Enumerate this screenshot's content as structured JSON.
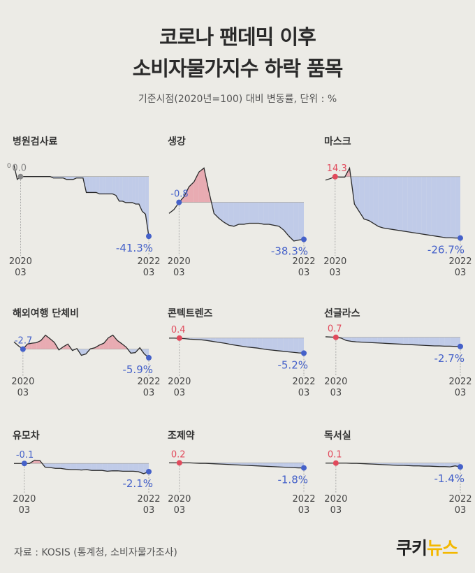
{
  "title_line1": "코로나 팬데믹 이후",
  "title_line2": "소비자물가지수 하락 품목",
  "subtitle": "기준시점(2020년=100) 대비 변동률, 단위 : %",
  "source": "자료 : KOSIS (통계청, 소비자물가조사)",
  "logo": {
    "part1": "쿠키",
    "part2": "뉴스"
  },
  "colors": {
    "pos": "#e8a0a8",
    "neg": "#b8c6e8",
    "pos_dot": "#e14a5c",
    "neg_dot": "#4561c9",
    "line": "#2a2a2a"
  },
  "chart_data": [
    {
      "type": "area",
      "title": "병원검사료",
      "start_label": "2020\n03",
      "end_label": "2022\n03",
      "start_value": 0.0,
      "end_value": -41.3,
      "start_text": "0.0",
      "end_text": "-41.3%",
      "ylim": [
        -48,
        10
      ],
      "extra_tick": "0",
      "values": [
        8,
        -2,
        0,
        0,
        0,
        0,
        0,
        0,
        0,
        0,
        0,
        0,
        -1,
        -1,
        -1,
        -1,
        -2,
        -2,
        -2,
        -1,
        -1,
        -1,
        -11,
        -11,
        -11,
        -11,
        -12,
        -12,
        -12,
        -12,
        -12,
        -13,
        -17,
        -17,
        -18,
        -18,
        -18,
        -19,
        -19,
        -24,
        -26,
        -41.3
      ]
    },
    {
      "type": "area",
      "title": "생강",
      "start_label": "2020\n03",
      "end_label": "2022\n03",
      "start_value": -0.8,
      "end_value": -38.3,
      "start_text": "-0.8",
      "end_text": "-38.3%",
      "ylim": [
        -45,
        40
      ],
      "values": [
        -12,
        -8,
        -0.8,
        5,
        15,
        20,
        30,
        34,
        10,
        -12,
        -17,
        -21,
        -24,
        -25,
        -23,
        -23,
        -22,
        -22,
        -22,
        -23,
        -23,
        -24,
        -25,
        -29,
        -35,
        -40,
        -39,
        -38.3
      ]
    },
    {
      "type": "area",
      "title": "마스크",
      "start_label": "2020\n03",
      "end_label": "2022\n03",
      "start_value": 14.3,
      "end_value": -26.7,
      "start_text": "14.3",
      "end_text": "-26.7%",
      "ylim": [
        -32,
        24
      ],
      "values": [
        12,
        13,
        14.3,
        14,
        14,
        20,
        -4,
        -9,
        -14,
        -15,
        -17,
        -19,
        -20,
        -20.5,
        -21,
        -21.5,
        -22,
        -22.5,
        -23,
        -23.5,
        -24,
        -24.5,
        -25,
        -25.5,
        -26,
        -26.5,
        -26.5,
        -26.7,
        -26.7
      ]
    },
    {
      "type": "area",
      "title": "해외여행 단체비",
      "start_label": "2020\n03",
      "end_label": "2022\n03",
      "start_value": -2.7,
      "end_value": -5.9,
      "start_text": "-2.7",
      "end_text": "-5.9%",
      "ylim": [
        -8,
        5
      ],
      "values": [
        0,
        -1.5,
        -2.7,
        -0.8,
        -0.5,
        -0.3,
        0.5,
        2.5,
        1.2,
        -0.2,
        -3.0,
        -1.8,
        -0.8,
        -3.2,
        -2.5,
        -5.0,
        -4.5,
        -2.6,
        -2.2,
        -1.2,
        -0.5,
        1.5,
        2.5,
        0.5,
        -0.7,
        -2.0,
        -4.2,
        -4.0,
        -2.2,
        -4.5,
        -5.9
      ]
    },
    {
      "type": "area",
      "title": "콘텍트렌즈",
      "start_label": "2020\n03",
      "end_label": "2022\n03",
      "start_value": 0.4,
      "end_value": -5.2,
      "start_text": "0.4",
      "end_text": "-5.2%",
      "ylim": [
        -9,
        4
      ],
      "values": [
        0.4,
        0.4,
        0.3,
        0.2,
        0,
        -0.1,
        -0.2,
        -0.4,
        -0.7,
        -1.0,
        -1.3,
        -1.6,
        -2.0,
        -2.3,
        -2.6,
        -2.9,
        -3.1,
        -3.3,
        -3.6,
        -3.9,
        -4.1,
        -4.3,
        -4.5,
        -4.7,
        -4.9,
        -5.1,
        -5.2
      ]
    },
    {
      "type": "area",
      "title": "선글라스",
      "start_label": "2020\n03",
      "end_label": "2022\n03",
      "start_value": 0.7,
      "end_value": -2.7,
      "start_text": "0.7",
      "end_text": "-2.7%",
      "ylim": [
        -9,
        4
      ],
      "values": [
        0.9,
        0.8,
        0.7,
        0.4,
        -0.5,
        -0.8,
        -1.0,
        -1.1,
        -1.2,
        -1.3,
        -1.4,
        -1.5,
        -1.6,
        -1.7,
        -1.8,
        -1.9,
        -2.0,
        -2.1,
        -2.2,
        -2.3,
        -2.4,
        -2.5,
        -2.5,
        -2.6,
        -2.6,
        -2.7,
        -2.7
      ]
    },
    {
      "type": "area",
      "title": "유모차",
      "start_label": "2020\n03",
      "end_label": "2022\n03",
      "start_value": -0.1,
      "end_value": -2.1,
      "start_text": "-0.1",
      "end_text": "-2.1%",
      "ylim": [
        -5,
        3
      ],
      "values": [
        -0.1,
        -0.1,
        -0.1,
        -0.1,
        0.7,
        0.6,
        -1.0,
        -1.1,
        -1.3,
        -1.3,
        -1.5,
        -1.6,
        -1.6,
        -1.7,
        -1.6,
        -1.8,
        -1.8,
        -1.8,
        -2.0,
        -1.9,
        -1.9,
        -2.0,
        -2.0,
        -2.0,
        -2.1,
        -2.6,
        -2.1
      ]
    },
    {
      "type": "area",
      "title": "조제약",
      "start_label": "2020\n03",
      "end_label": "2022\n03",
      "start_value": 0.2,
      "end_value": -1.8,
      "start_text": "0.2",
      "end_text": "-1.8%",
      "ylim": [
        -8,
        5
      ],
      "values": [
        0.2,
        0.2,
        0.2,
        0.2,
        0.2,
        0.1,
        0,
        0,
        -0.1,
        -0.2,
        -0.3,
        -0.4,
        -0.5,
        -0.6,
        -0.7,
        -0.8,
        -0.9,
        -1.0,
        -1.1,
        -1.2,
        -1.3,
        -1.4,
        -1.5,
        -1.6,
        -1.7,
        -1.8,
        -1.8
      ]
    },
    {
      "type": "area",
      "title": "독서실",
      "start_label": "2020\n03",
      "end_label": "2022\n03",
      "start_value": 0.1,
      "end_value": -1.4,
      "start_text": "0.1",
      "end_text": "-1.4%",
      "ylim": [
        -8,
        5
      ],
      "values": [
        0.1,
        0.1,
        0.1,
        0.1,
        0.1,
        0,
        0,
        -0.1,
        -0.2,
        -0.3,
        -0.4,
        -0.5,
        -0.6,
        -0.7,
        -0.8,
        -0.8,
        -0.9,
        -1.0,
        -1.0,
        -1.1,
        -1.1,
        -1.2,
        -1.3,
        -1.3,
        -1.4,
        -1.0,
        -1.4
      ]
    }
  ]
}
